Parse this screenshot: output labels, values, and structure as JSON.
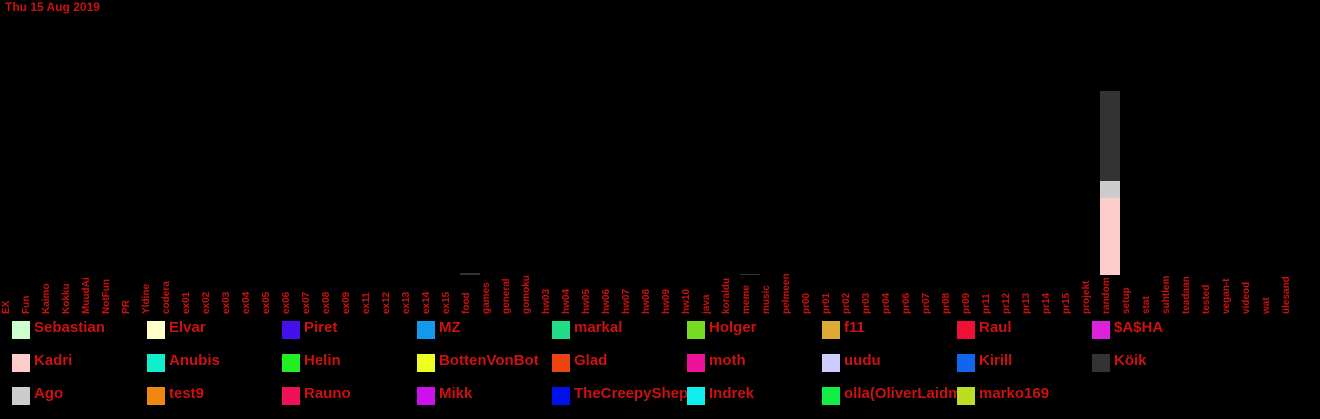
{
  "header": {
    "date": "Thu 15 Aug 2019"
  },
  "chart_data": {
    "type": "bar",
    "stacked": true,
    "title": "",
    "xlabel": "",
    "ylabel": "",
    "categories": [
      "EX",
      "Fun",
      "Kaimo",
      "Kokku",
      "MuudAi",
      "NotFun",
      "PR",
      "Yldine",
      "codera",
      "ex01",
      "ex02",
      "ex03",
      "ex04",
      "ex05",
      "ex06",
      "ex07",
      "ex08",
      "ex09",
      "ex11",
      "ex12",
      "ex13",
      "ex14",
      "ex15",
      "food",
      "games",
      "general",
      "gomoku",
      "hw03",
      "hw04",
      "hw05",
      "hw06",
      "hw07",
      "hw08",
      "hw09",
      "hw10",
      "java",
      "koraldu",
      "meme",
      "music",
      "pelmeen",
      "pr00",
      "pr01",
      "pr02",
      "pr03",
      "pr04",
      "pr06",
      "pr07",
      "pr08",
      "pr09",
      "pr11",
      "pr12",
      "pr13",
      "pr14",
      "pr15",
      "projekt",
      "random",
      "setup",
      "stat",
      "suhtlem",
      "teadaan",
      "tested",
      "vegan-t",
      "videod",
      "wat",
      "ülesand"
    ],
    "ylim": [
      0,
      185
    ],
    "series": [
      {
        "name": "Sebastian",
        "color": "#ccffcc",
        "values": {}
      },
      {
        "name": "Elvar",
        "color": "#ffffcc",
        "values": {}
      },
      {
        "name": "Piret",
        "color": "#4411ee",
        "values": {}
      },
      {
        "name": "MZ",
        "color": "#1199ee",
        "values": {}
      },
      {
        "name": "markal",
        "color": "#22dd88",
        "values": {}
      },
      {
        "name": "Holger",
        "color": "#77dd22",
        "values": {}
      },
      {
        "name": "f11",
        "color": "#ddaa33",
        "values": {}
      },
      {
        "name": "Raul",
        "color": "#ee1133",
        "values": {}
      },
      {
        "name": "$A$HA",
        "color": "#dd22dd",
        "values": {}
      },
      {
        "name": "Kadri",
        "color": "#ffcccc",
        "values": {
          "random": 77
        }
      },
      {
        "name": "Anubis",
        "color": "#11eecc",
        "values": {}
      },
      {
        "name": "Helin",
        "color": "#22ee22",
        "values": {}
      },
      {
        "name": "BottenVonBot",
        "color": "#eeff22",
        "values": {}
      },
      {
        "name": "Glad",
        "color": "#ee4411",
        "values": {}
      },
      {
        "name": "moth",
        "color": "#ee1199",
        "values": {}
      },
      {
        "name": "uudu",
        "color": "#ccccff",
        "values": {}
      },
      {
        "name": "Kirill",
        "color": "#1166ee",
        "values": {}
      },
      {
        "name": "Köik",
        "color": "#333333",
        "values": {
          "food": 2,
          "meme": 1,
          "random": 90
        }
      },
      {
        "name": "Ago",
        "color": "#cccccc",
        "values": {
          "random": 17
        }
      },
      {
        "name": "test9",
        "color": "#ee8811",
        "values": {}
      },
      {
        "name": "Rauno",
        "color": "#ee1155",
        "values": {}
      },
      {
        "name": "Mikk",
        "color": "#cc11ee",
        "values": {}
      },
      {
        "name": "TheCreepyShepherd",
        "color": "#0011ee",
        "values": {}
      },
      {
        "name": "Indrek",
        "color": "#11eeee",
        "values": {}
      },
      {
        "name": "olla(OliverLaidma)",
        "color": "#11ee44",
        "values": {}
      },
      {
        "name": "marko169",
        "color": "#bbdd22",
        "values": {}
      }
    ],
    "stack_order": [
      "Kadri",
      "Ago",
      "Köik"
    ],
    "legend": {
      "position": "bottom",
      "columns": 9
    },
    "grid": false
  }
}
